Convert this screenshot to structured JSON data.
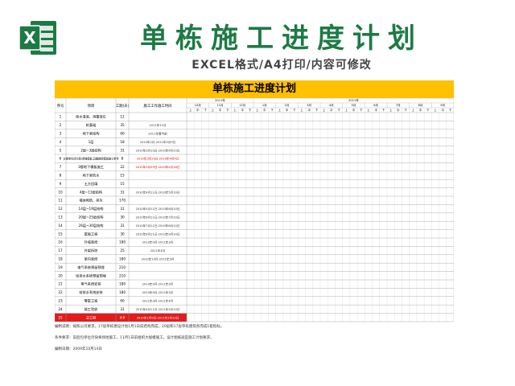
{
  "header": {
    "title": "单栋施工进度计划",
    "subtitle": "EXCEL格式/A4打印/内容可修改"
  },
  "sheet": {
    "title": "单栋施工进度计划",
    "columns": {
      "no": "序号",
      "item": "项目",
      "duration": "工期(天)",
      "plan": "施工工作施工时间"
    },
    "years": [
      "2011年",
      "2011年"
    ],
    "months": [
      "10月",
      "11月",
      "12月",
      "1月",
      "2月",
      "3月",
      "4月",
      "5月",
      "6月",
      "7月",
      "8月",
      "9月"
    ],
    "decade_labels": [
      "上",
      "中",
      "下"
    ],
    "rows": [
      {
        "no": "1",
        "item": "除水清底、测量放位",
        "duration": "12",
        "plan": "",
        "plan_color": "#333"
      },
      {
        "no": "2",
        "item": "桩基础",
        "duration": "35",
        "plan": "2011年11月",
        "plan_color": "#333"
      },
      {
        "no": "3",
        "item": "地下室结构",
        "duration": "60",
        "plan": "2011年春节前",
        "plan_color": "#333"
      },
      {
        "no": "4",
        "item": "1层",
        "duration": "18",
        "plan": "2010年2月-2011年3月9日",
        "plan_color": "#333"
      },
      {
        "no": "5",
        "item": "2层~3层结构",
        "duration": "31",
        "plan": "2010年3月10日-2010年4月10日",
        "plan_color": "#333"
      },
      {
        "no": "6",
        "item": "主楼地坑(即3层)重锤模板,具备楼层模板施工条件",
        "duration": "8",
        "plan": "2010年3月29日-2010年4月4日",
        "plan_color": "#d00"
      },
      {
        "no": "7",
        "item": "3楼地下模板施工",
        "duration": "22",
        "plan": "2010年3月29日-2010年4月18日",
        "plan_color": "#d00"
      },
      {
        "no": "8",
        "item": "地下室防水",
        "duration": "15",
        "plan": "",
        "plan_color": "#333"
      },
      {
        "no": "9",
        "item": "土方回填",
        "duration": "15",
        "plan": "",
        "plan_color": "#333"
      },
      {
        "no": "10",
        "item": "4层~13层结构",
        "duration": "31",
        "plan": "2010年4月11日-2010年5月10日",
        "plan_color": "#333"
      },
      {
        "no": "11",
        "item": "墙体砌筑、抹灰",
        "duration": "170",
        "plan": "",
        "plan_color": "#333"
      },
      {
        "no": "12",
        "item": "14层~19层结构",
        "duration": "31",
        "plan": "2010年5月11日-2010年6月10日",
        "plan_color": "#333"
      },
      {
        "no": "13",
        "item": "20层~25层结构",
        "duration": "30",
        "plan": "2010年6月11日-2010年7月10日",
        "plan_color": "#333"
      },
      {
        "no": "14",
        "item": "26层~30层结构",
        "duration": "31",
        "plan": "2010年7月11日-2010年8月10日",
        "plan_color": "#333"
      },
      {
        "no": "15",
        "item": "屋面工程",
        "duration": "30",
        "plan": "2010年8月11日-2010年9月10日",
        "plan_color": "#333"
      },
      {
        "no": "16",
        "item": "外墙装修",
        "duration": "180",
        "plan": "2010年9月-2011年3月",
        "plan_color": "#333"
      },
      {
        "no": "17",
        "item": "外架拆除",
        "duration": "25",
        "plan": "2011年4月",
        "plan_color": "#333"
      },
      {
        "no": "18",
        "item": "室内装修",
        "duration": "180",
        "plan": "2010年10月-2011年3月",
        "plan_color": "#333"
      },
      {
        "no": "19",
        "item": "电气系统预留预埋",
        "duration": "210",
        "plan": "",
        "plan_color": "#333"
      },
      {
        "no": "20",
        "item": "给排水系统预留预埋",
        "duration": "210",
        "plan": "",
        "plan_color": "#333"
      },
      {
        "no": "21",
        "item": "电气系统安装",
        "duration": "180",
        "plan": "2010年9月-2011年3月",
        "plan_color": "#333"
      },
      {
        "no": "22",
        "item": "给排水系统安装",
        "duration": "180",
        "plan": "2010年9月-2011年3月",
        "plan_color": "#333"
      },
      {
        "no": "23",
        "item": "零星工程",
        "duration": "60",
        "plan": "2011年3月-2011年4月",
        "plan_color": "#333"
      },
      {
        "no": "24",
        "item": "竣工验收",
        "duration": "31",
        "plan": "2010年4月11日-2011年5月10日",
        "plan_color": "#333"
      },
      {
        "no": "25",
        "item": "总工期",
        "duration": "##",
        "plan": "2010年1月9日-2011年5月10日",
        "plan_color": "#fff"
      }
    ],
    "notes": [
      "编制说明：按照公司要求，17层单栋建设计划1月1日前结构完成，20层和17层单栋建筑各完成1套指标。",
      "条件要求：前后包单位尽快将场地施工，11月1日前组织大规模施工，设计图纸就是施工计划要求。",
      "编制日期：2009年10月14日"
    ]
  }
}
